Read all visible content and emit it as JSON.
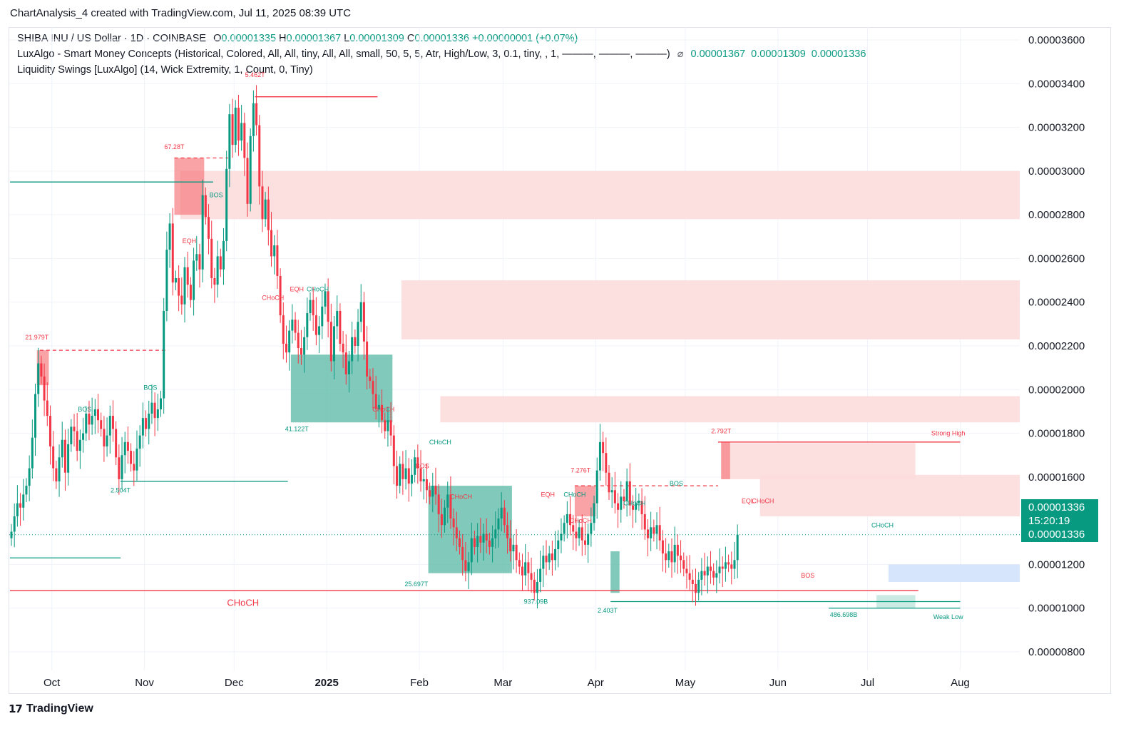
{
  "header": {
    "title": "ChartAnalysis_4 created with TradingView.com, Jul 11, 2025 08:39 UTC"
  },
  "legend": {
    "symbol": "SHIBA INU / US Dollar · 1D · COINBASE",
    "o_label": "O",
    "o": "0.00001335",
    "h_label": "H",
    "h": "0.00001367",
    "l_label": "L",
    "l": "0.00001309",
    "c_label": "C",
    "c": "0.00001336",
    "change": "+0.00000001 (+0.07%)",
    "indicator1": "LuxAlgo - Smart Money Concepts (Historical, Colored, All, All, tiny, All, All, small, 50, 5, 5, Atr, High/Low, 3, 0.1, tiny, , 1, ———, ———, ———)",
    "indicator1_icon": "eye-slash-icon",
    "indicator1_values": [
      "0.00001367",
      "0.00001309",
      "0.00001336"
    ],
    "indicator2": "Liquidity Swings [LuxAlgo] (14, Wick Extremity, 1, Count, 0, Tiny)"
  },
  "price_tag": {
    "price": "0.00001336",
    "countdown": "15:20:19",
    "price2": "0.00001336"
  },
  "footer": {
    "brand": "TradingView",
    "logo_text": "17"
  },
  "colors": {
    "up": "#089981",
    "down": "#f23645",
    "grid": "#f0f3fa",
    "supply_zone": "#fcdada",
    "demand_zone": "#57b8a4",
    "fvg_blue": "#cfe0fb"
  },
  "chart_data": {
    "type": "candlestick",
    "title": "SHIBA INU / US Dollar · 1D · COINBASE",
    "ylim": [
      7.4e-06,
      3.72e-05
    ],
    "y_ticks": [
      "0.00003600",
      "0.00003400",
      "0.00003200",
      "0.00003000",
      "0.00002800",
      "0.00002600",
      "0.00002400",
      "0.00002200",
      "0.00002000",
      "0.00001800",
      "0.00001600",
      "0.00001200",
      "0.00001000",
      "0.00000800"
    ],
    "y_tick_values": [
      36,
      34,
      32,
      30,
      28,
      26,
      24,
      22,
      20,
      18,
      16,
      12,
      10,
      8
    ],
    "x_ticks": [
      "Oct",
      "Nov",
      "Dec",
      "2025",
      "Feb",
      "Mar",
      "Apr",
      "May",
      "Jun",
      "Jul",
      "Aug"
    ],
    "x_tick_days": [
      14,
      45,
      75,
      106,
      137,
      165,
      196,
      226,
      257,
      287,
      318
    ],
    "price_unit": "1e-6",
    "close_series_1e6": [
      13.5,
      14.2,
      14.8,
      14.6,
      15.2,
      15.6,
      16.4,
      17.8,
      19.8,
      21.2,
      20.6,
      19.5,
      18.8,
      17.4,
      16.4,
      15.8,
      16.9,
      17.7,
      16.2,
      17.5,
      18.3,
      18.1,
      17.2,
      17.7,
      18.0,
      18.9,
      18.4,
      18.8,
      19.1,
      18.6,
      18.2,
      17.4,
      17.9,
      18.8,
      18.2,
      16.9,
      15.9,
      17.0,
      17.6,
      17.2,
      16.6,
      16.3,
      17.3,
      17.9,
      18.7,
      18.2,
      18.9,
      19.4,
      18.7,
      19.1,
      19.6,
      23.6,
      26.4,
      27.6,
      24.9,
      25.1,
      24.3,
      23.9,
      25.6,
      24.8,
      24.1,
      25.9,
      26.2,
      25.5,
      28.9,
      27.9,
      26.9,
      25.1,
      24.8,
      26.1,
      25.5,
      26.8,
      30.1,
      32.6,
      31.2,
      32.9,
      31.4,
      32.2,
      30.6,
      28.5,
      31.6,
      33.1,
      32.1,
      29.3,
      27.8,
      28.7,
      27.3,
      26.1,
      26.6,
      25.2,
      23.4,
      22.1,
      21.7,
      22.7,
      23.2,
      22.6,
      21.9,
      21.6,
      22.4,
      23.5,
      24.1,
      23.4,
      22.5,
      22.9,
      23.8,
      24.5,
      23.1,
      21.3,
      22.9,
      23.6,
      22.1,
      21.7,
      20.7,
      21.3,
      22.4,
      22.0,
      23.1,
      24.0,
      22.2,
      20.6,
      20.4,
      19.8,
      19.1,
      19.3,
      18.6,
      18.1,
      18.6,
      17.9,
      16.5,
      15.6,
      16.6,
      15.9,
      16.4,
      15.7,
      16.1,
      16.9,
      16.4,
      15.8,
      15.9,
      15.4,
      15.1,
      15.6,
      15.2,
      14.3,
      13.8,
      14.6,
      15.2,
      14.1,
      13.7,
      13.2,
      12.8,
      12.2,
      11.7,
      12.1,
      13.2,
      12.8,
      13.3,
      13.0,
      13.4,
      13.1,
      12.8,
      13.2,
      13.6,
      14.1,
      14.6,
      13.8,
      13.2,
      12.6,
      12.9,
      12.2,
      11.9,
      11.5,
      12.1,
      11.6,
      11.3,
      10.7,
      11.2,
      11.8,
      12.4,
      12.1,
      12.5,
      12.2,
      12.7,
      13.1,
      13.4,
      13.9,
      14.3,
      13.8,
      13.5,
      13.2,
      13.7,
      13.1,
      12.9,
      13.4,
      13.9,
      14.8,
      16.3,
      17.6,
      17.1,
      16.2,
      15.3,
      15.4,
      14.8,
      14.5,
      15.1,
      14.9,
      15.8,
      14.7,
      14.5,
      14.8,
      14.9,
      14.3,
      13.6,
      13.2,
      13.7,
      13.4,
      13.8,
      13.1,
      12.5,
      12.2,
      12.6,
      12.1,
      12.9,
      12.4,
      12.2,
      11.8,
      11.6,
      11.3,
      11.1,
      10.7,
      11.3,
      11.7,
      11.5,
      11.9,
      11.7,
      11.4,
      11.6,
      11.9,
      11.8,
      12.1,
      12.0,
      11.8,
      12.2,
      13.36
    ],
    "zones": [
      {
        "kind": "supply",
        "label": "",
        "x0_day": 57,
        "x1_day": 347,
        "y_top": 30.0,
        "y_bot": 27.8
      },
      {
        "kind": "supply",
        "label": "",
        "x0_day": 131,
        "x1_day": 347,
        "y_top": 25.0,
        "y_bot": 22.3
      },
      {
        "kind": "supply",
        "label": "",
        "x0_day": 144,
        "x1_day": 347,
        "y_top": 19.7,
        "y_bot": 18.5
      },
      {
        "kind": "supply",
        "label": "",
        "x0_day": 251,
        "x1_day": 347,
        "y_top": 16.1,
        "y_bot": 14.2
      },
      {
        "kind": "supply",
        "label": "",
        "x0_day": 238,
        "x1_day": 303,
        "y_top": 17.55,
        "y_bot": 15.9
      },
      {
        "kind": "fvg",
        "label": "",
        "x0_day": 294,
        "x1_day": 347,
        "y_top": 12.0,
        "y_bot": 11.2
      }
    ],
    "annotations": [
      {
        "text": "5.462T",
        "color": "#f23645"
      },
      {
        "text": "67.28T",
        "color": "#f23645"
      },
      {
        "text": "21.979T",
        "color": "#f23645"
      },
      {
        "text": "BOS",
        "color": "#089981"
      },
      {
        "text": "EQH",
        "color": "#f23645"
      },
      {
        "text": "BOS",
        "color": "#089981"
      },
      {
        "text": "BOS",
        "color": "#089981"
      },
      {
        "text": "2.504T",
        "color": "#089981"
      },
      {
        "text": "CHoCH",
        "color": "#f23645"
      },
      {
        "text": "EQH",
        "color": "#f23645"
      },
      {
        "text": "CHoCH",
        "color": "#089981"
      },
      {
        "text": "41.122T",
        "color": "#089981"
      },
      {
        "text": "CHoCH",
        "color": "#f23645"
      },
      {
        "text": "CHoCH",
        "color": "#089981"
      },
      {
        "text": "BOS",
        "color": "#f23645"
      },
      {
        "text": "CHoCH",
        "color": "#f23645"
      },
      {
        "text": "25.697T",
        "color": "#089981"
      },
      {
        "text": "EQH",
        "color": "#f23645"
      },
      {
        "text": "CHoCH",
        "color": "#089981"
      },
      {
        "text": "7.276T",
        "color": "#f23645"
      },
      {
        "text": "CHoCH",
        "color": "#f23645"
      },
      {
        "text": "937.09B",
        "color": "#089981"
      },
      {
        "text": "2.403T",
        "color": "#089981"
      },
      {
        "text": "CHoCH",
        "color": "#089981"
      },
      {
        "text": "BOS",
        "color": "#089981"
      },
      {
        "text": "2.792T",
        "color": "#f23645"
      },
      {
        "text": "Strong High",
        "color": "#f23645"
      },
      {
        "text": "EQL",
        "color": "#f23645"
      },
      {
        "text": "CHoCH",
        "color": "#f23645"
      },
      {
        "text": "BOS",
        "color": "#f23645"
      },
      {
        "text": "CHoCH",
        "color": "#089981"
      },
      {
        "text": "486.698B",
        "color": "#089981"
      },
      {
        "text": "Weak Low",
        "color": "#089981"
      },
      {
        "text": "CHoCH",
        "color": "#f23645"
      }
    ]
  }
}
